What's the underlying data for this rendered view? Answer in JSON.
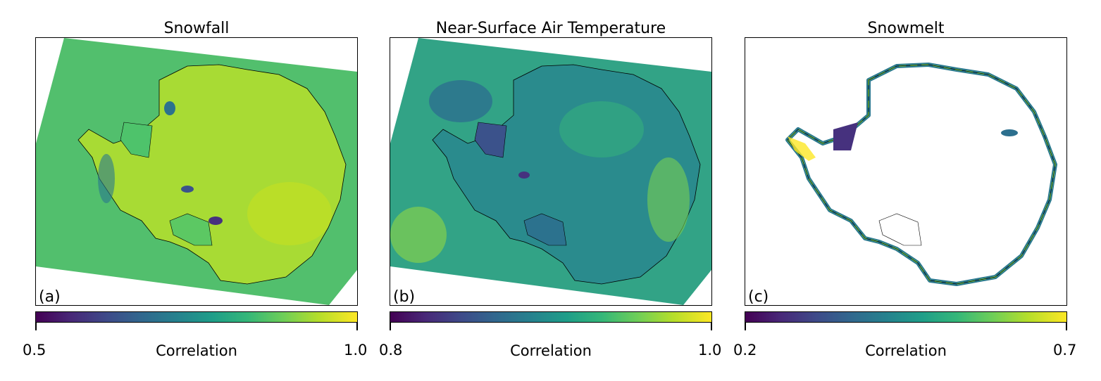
{
  "panels": [
    {
      "title": "Snowfall",
      "label": "(a)",
      "colorbar": {
        "label": "Correlation",
        "min": "0.5",
        "max": "1.0",
        "range": [
          0.5,
          1.0
        ]
      },
      "field": {
        "base": "#52bf6d",
        "accents": [
          "#b6dd2b",
          "#3a8f8b",
          "#46317e",
          "#2a788e",
          "#cde11d"
        ]
      }
    },
    {
      "title": "Near-Surface Air Temperature",
      "label": "(b)",
      "colorbar": {
        "label": "Correlation",
        "min": "0.8",
        "max": "1.0",
        "range": [
          0.8,
          1.0
        ]
      },
      "field": {
        "base": "#32a386",
        "accents": [
          "#2c6f8e",
          "#8fd744",
          "#3b528b",
          "#24868e",
          "#6ccd5a"
        ]
      }
    },
    {
      "title": "Snowmelt",
      "label": "(c)",
      "colorbar": {
        "label": "Correlation",
        "min": "0.2",
        "max": "0.7",
        "range": [
          0.2,
          0.7
        ]
      },
      "field": {
        "base": "#ffffff",
        "accents": [
          "#2a788e",
          "#fde725",
          "#22a884",
          "#46317e",
          "#7ad151"
        ]
      }
    }
  ],
  "colormap": "viridis"
}
